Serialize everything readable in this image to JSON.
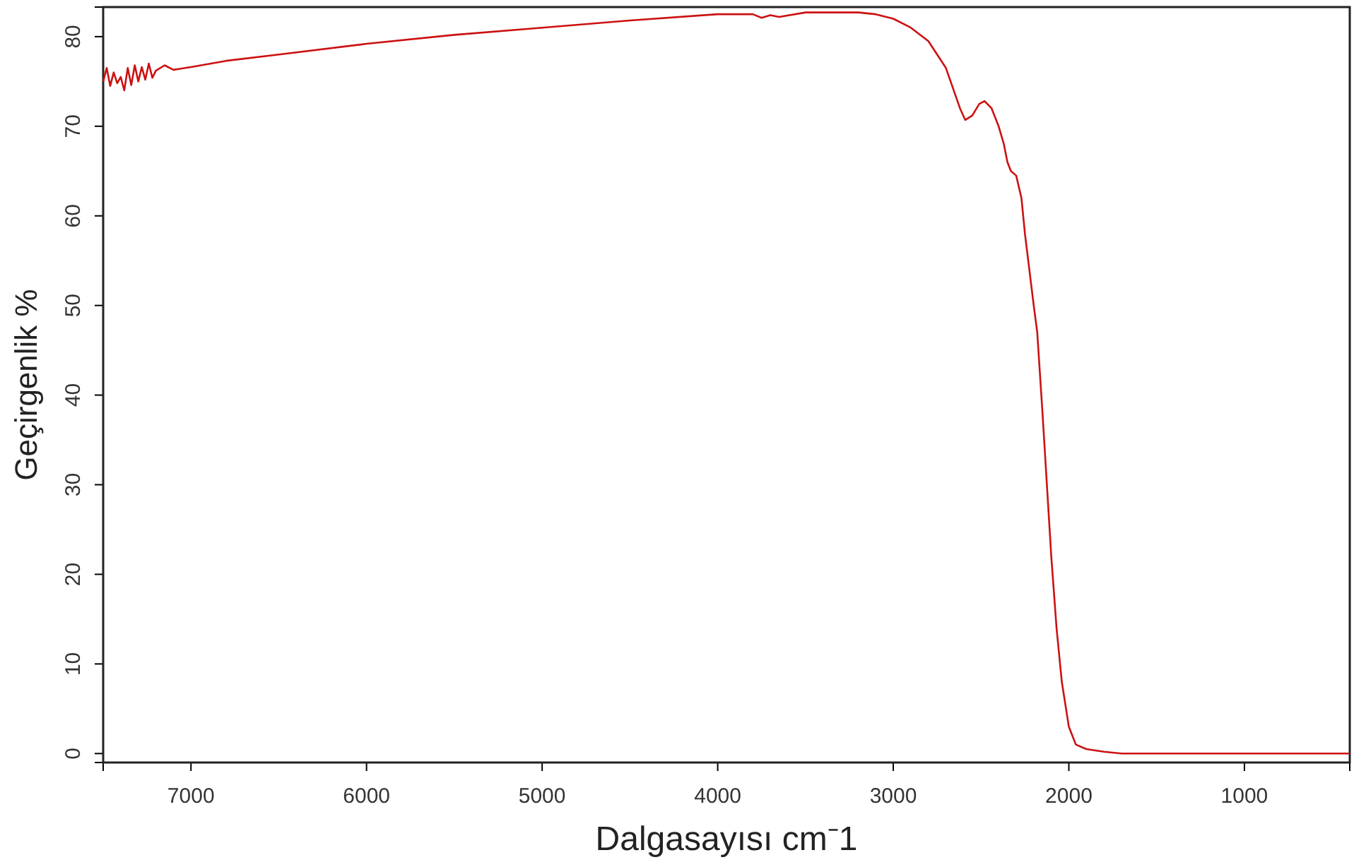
{
  "chart_data": {
    "type": "line",
    "xlabel": "Dalgasayısı cm⁻1",
    "ylabel": "Geçirgenlik %",
    "xlim": [
      7500,
      400
    ],
    "ylim": [
      -1,
      83.3
    ],
    "xticks": [
      7000,
      6000,
      5000,
      4000,
      3000,
      2000,
      1000
    ],
    "yticks": [
      0,
      10,
      20,
      30,
      40,
      50,
      60,
      70,
      80
    ],
    "grid": false,
    "marker": "none",
    "line_style": "solid",
    "series": [
      {
        "color": "#cc1111",
        "x": [
          7500,
          7480,
          7460,
          7440,
          7420,
          7400,
          7380,
          7360,
          7340,
          7320,
          7300,
          7280,
          7260,
          7240,
          7220,
          7200,
          7150,
          7100,
          7000,
          6800,
          6500,
          6000,
          5500,
          5000,
          4500,
          4000,
          3800,
          3750,
          3700,
          3650,
          3500,
          3200,
          3100,
          3000,
          2900,
          2800,
          2700,
          2620,
          2590,
          2550,
          2510,
          2480,
          2440,
          2400,
          2370,
          2350,
          2330,
          2300,
          2270,
          2250,
          2200,
          2180,
          2150,
          2100,
          2070,
          2040,
          2000,
          1960,
          1900,
          1800,
          1700,
          1500,
          1000,
          400
        ],
        "values": [
          75,
          76.5,
          74.5,
          76,
          74.8,
          75.5,
          74,
          76.5,
          74.6,
          76.8,
          75,
          76.6,
          75.2,
          77,
          75.4,
          76.2,
          76.8,
          76.3,
          76.6,
          77.3,
          78,
          79.2,
          80.2,
          81,
          81.8,
          82.5,
          82.5,
          82.1,
          82.4,
          82.2,
          82.7,
          82.7,
          82.5,
          82,
          81,
          79.5,
          76.5,
          72,
          70.7,
          71.2,
          72.5,
          72.8,
          72,
          70,
          68,
          66,
          65,
          64.5,
          62,
          58,
          50,
          47,
          38,
          22,
          14,
          8,
          3,
          1,
          0.5,
          0.2,
          0,
          0,
          0,
          0
        ]
      }
    ]
  }
}
